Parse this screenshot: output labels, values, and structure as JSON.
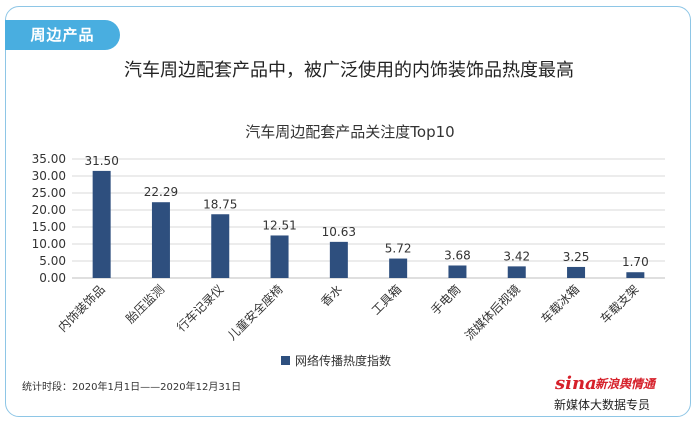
{
  "tag_label": "周边产品",
  "headline": "汽车周边配套产品中，被广泛使用的内饰装饰品热度最高",
  "footer": {
    "period": "统计时段：2020年1月1日——2020年12月31日",
    "brand_word": "sina",
    "brand_cn": "新浪舆情通",
    "brand_sub": "新媒体大数据专员"
  },
  "colors": {
    "bar": "#2e4f7e",
    "tag": "#49aee0",
    "border": "#8ec6e6",
    "grid": "#d9d9d9"
  },
  "chart_data": {
    "type": "bar",
    "title": "汽车周边配套产品关注度Top10",
    "categories": [
      "内饰装饰品",
      "胎压监测",
      "行车记录仪",
      "儿童安全座椅",
      "香水",
      "工具箱",
      "手电筒",
      "流媒体后视镜",
      "车载冰箱",
      "车载支架"
    ],
    "series": [
      {
        "name": "网络传播热度指数",
        "values": [
          31.5,
          22.29,
          18.75,
          12.51,
          10.63,
          5.72,
          3.68,
          3.42,
          3.25,
          1.7
        ]
      }
    ],
    "value_labels": [
      "31.50",
      "22.29",
      "18.75",
      "12.51",
      "10.63",
      "5.72",
      "3.68",
      "3.42",
      "3.25",
      "1.70"
    ],
    "yticks": [
      "0.00",
      "5.00",
      "10.00",
      "15.00",
      "20.00",
      "25.00",
      "30.00",
      "35.00"
    ],
    "ylim": [
      0,
      35
    ],
    "grid": true,
    "legend_position": "bottom"
  }
}
